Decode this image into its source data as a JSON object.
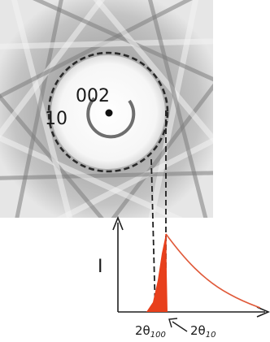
{
  "pattern": {
    "ring_label_10": "10",
    "ring_label_002": "002"
  },
  "plot": {
    "ylabel": "I",
    "marker_100_base": "2θ",
    "marker_100_sub": "100",
    "marker_10_base": "2θ",
    "marker_10_sub": "10"
  },
  "colors": {
    "peak_fill": "#e8401c",
    "peak_line": "#e05a3a",
    "ring_dash": "#2a2a2a",
    "inner_arc": "#6e6e6e"
  }
}
